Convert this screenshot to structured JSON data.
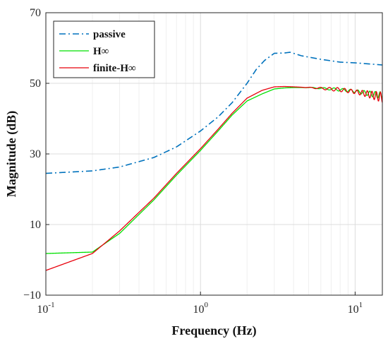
{
  "chart_data": {
    "type": "line",
    "title": "",
    "xlabel": "Frequency (Hz)",
    "ylabel": "Magnitude (dB)",
    "xscale": "log",
    "xlim": [
      0.1,
      15
    ],
    "ylim": [
      -10,
      70
    ],
    "grid": true,
    "legend_position": "top-left",
    "x_ticks": [
      {
        "value": 0.1,
        "base": "10",
        "exp": "-1"
      },
      {
        "value": 1,
        "base": "10",
        "exp": "0"
      },
      {
        "value": 10,
        "base": "10",
        "exp": "1"
      }
    ],
    "y_ticks": [
      {
        "value": -10,
        "label": "−10"
      },
      {
        "value": 10,
        "label": "10"
      },
      {
        "value": 30,
        "label": "30"
      },
      {
        "value": 50,
        "label": "50"
      },
      {
        "value": 70,
        "label": "70"
      }
    ],
    "series": [
      {
        "name": "passive",
        "color": "#0072BD",
        "style": "dashdot",
        "x": [
          0.1,
          0.2,
          0.3,
          0.5,
          0.7,
          1.0,
          1.3,
          1.6,
          2.0,
          2.3,
          2.6,
          3.0,
          3.5,
          3.8,
          4.5,
          6,
          8,
          10,
          15
        ],
        "y": [
          24.5,
          25.2,
          26.3,
          29.0,
          32.0,
          36.5,
          40.5,
          44.5,
          50.0,
          54.0,
          56.5,
          58.5,
          58.6,
          58.8,
          57.8,
          56.8,
          56.0,
          55.8,
          55.2
        ]
      },
      {
        "name": "H∞",
        "color": "#00E000",
        "style": "solid",
        "x": [
          0.1,
          0.2,
          0.3,
          0.5,
          0.7,
          1.0,
          1.3,
          1.6,
          2.0,
          2.5,
          3.0,
          3.5,
          4,
          5,
          6,
          8,
          10,
          12,
          15
        ],
        "y": [
          1.8,
          2.2,
          7.5,
          17.0,
          24.0,
          31.0,
          36.5,
          41.0,
          45.0,
          47.0,
          48.4,
          48.7,
          48.8,
          48.8,
          48.6,
          48.2,
          47.8,
          47.2,
          46.5
        ]
      },
      {
        "name": "finite-H∞",
        "color": "#E8000B",
        "style": "solid",
        "x": [
          0.1,
          0.2,
          0.3,
          0.5,
          0.7,
          1.0,
          1.3,
          1.6,
          2.0,
          2.5,
          3.0,
          3.5,
          4,
          5,
          6,
          8,
          10,
          12,
          15
        ],
        "y": [
          -3.0,
          1.8,
          8.2,
          17.5,
          24.5,
          31.5,
          37.0,
          41.5,
          45.8,
          48.0,
          49.0,
          49.1,
          49.0,
          48.8,
          48.6,
          48.2,
          47.6,
          47.0,
          46.0
        ]
      }
    ]
  }
}
